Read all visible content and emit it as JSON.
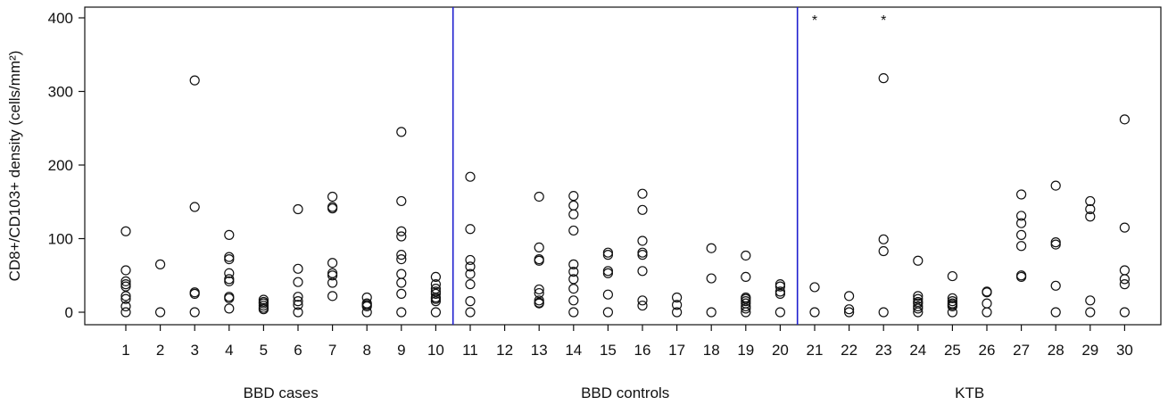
{
  "chart_data": {
    "type": "scatter",
    "ylabel": "CD8+/CD103+ density (cells/mm²)",
    "ylim": [
      0,
      400
    ],
    "yticks": [
      0,
      100,
      200,
      300,
      400
    ],
    "categories": [
      "1",
      "2",
      "3",
      "4",
      "5",
      "6",
      "7",
      "8",
      "9",
      "10",
      "11",
      "12",
      "13",
      "14",
      "15",
      "16",
      "17",
      "18",
      "19",
      "20",
      "21",
      "22",
      "23",
      "24",
      "25",
      "26",
      "27",
      "28",
      "29",
      "30"
    ],
    "groups": [
      {
        "label": "BBD cases",
        "categories": [
          "1",
          "2",
          "3",
          "4",
          "5",
          "6",
          "7",
          "8",
          "9",
          "10"
        ]
      },
      {
        "label": "BBD controls",
        "categories": [
          "11",
          "12",
          "13",
          "14",
          "15",
          "16",
          "17",
          "18",
          "19",
          "20"
        ]
      },
      {
        "label": "KTB",
        "categories": [
          "21",
          "22",
          "23",
          "24",
          "25",
          "26",
          "27",
          "28",
          "29",
          "30"
        ]
      }
    ],
    "group_separator_color": "#1f1fcf",
    "annotations": [
      {
        "category": "21",
        "text": "*"
      },
      {
        "category": "23",
        "text": "*"
      }
    ],
    "points": {
      "1": [
        110,
        57,
        42,
        38,
        35,
        22,
        18,
        8,
        0
      ],
      "2": [
        65,
        0
      ],
      "3": [
        315,
        143,
        27,
        25,
        0
      ],
      "4": [
        105,
        75,
        72,
        53,
        45,
        42,
        21,
        19,
        5
      ],
      "5": [
        17,
        14,
        12,
        9,
        6,
        4
      ],
      "6": [
        140,
        59,
        41,
        21,
        15,
        10,
        0
      ],
      "7": [
        157,
        143,
        141,
        67,
        53,
        50,
        40,
        22
      ],
      "8": [
        20,
        12,
        10,
        8,
        0
      ],
      "9": [
        245,
        151,
        110,
        103,
        78,
        72,
        52,
        40,
        25,
        0
      ],
      "10": [
        48,
        38,
        32,
        28,
        25,
        20,
        18,
        15,
        0
      ],
      "11": [
        184,
        113,
        71,
        62,
        52,
        38,
        15,
        0
      ],
      "12": [],
      "13": [
        157,
        88,
        72,
        70,
        31,
        26,
        16,
        13,
        12
      ],
      "14": [
        158,
        145,
        133,
        111,
        65,
        55,
        45,
        32,
        16,
        0
      ],
      "15": [
        81,
        78,
        56,
        53,
        24,
        0
      ],
      "16": [
        161,
        139,
        97,
        81,
        78,
        56,
        16,
        9
      ],
      "17": [
        20,
        10,
        0
      ],
      "18": [
        87,
        46,
        0
      ],
      "19": [
        77,
        48,
        20,
        18,
        15,
        12,
        8,
        5,
        0
      ],
      "20": [
        38,
        35,
        28,
        25,
        0
      ],
      "21": [
        34,
        0
      ],
      "22": [
        22,
        4,
        0
      ],
      "23": [
        318,
        99,
        83,
        0
      ],
      "24": [
        70,
        22,
        18,
        14,
        12,
        8,
        5,
        0
      ],
      "25": [
        49,
        19,
        15,
        12,
        10,
        8,
        0
      ],
      "26": [
        28,
        27,
        12,
        0
      ],
      "27": [
        160,
        131,
        121,
        105,
        90,
        50,
        48
      ],
      "28": [
        172,
        95,
        92,
        36,
        0
      ],
      "29": [
        151,
        140,
        130,
        16,
        0
      ],
      "30": [
        262,
        115,
        57,
        45,
        38,
        0
      ]
    }
  }
}
